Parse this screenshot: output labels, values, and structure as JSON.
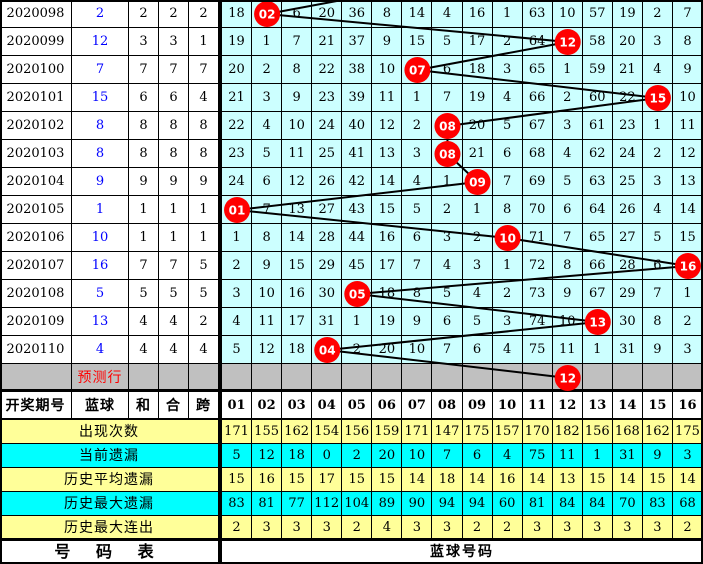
{
  "title": "双色球蓝球走势图",
  "colors": {
    "grid_cyan": "#CCFFFF",
    "stat_yellow": "#FFFF99",
    "stat_cyan": "#00FFFF",
    "prediction_gray": "#C0C0C0",
    "ball_red": "#FF0000",
    "blue_text": "#0000FF",
    "line_black": "#000000"
  },
  "left_table": {
    "headers": {
      "period": "开奖期号",
      "blue": "蓝球",
      "sum": "和",
      "combine": "合",
      "span": "跨"
    },
    "rows": [
      {
        "period": "2020098",
        "blue": "2",
        "cols": [
          "2",
          "2",
          "2"
        ]
      },
      {
        "period": "2020099",
        "blue": "12",
        "cols": [
          "3",
          "3",
          "1"
        ]
      },
      {
        "period": "2020100",
        "blue": "7",
        "cols": [
          "7",
          "7",
          "7"
        ]
      },
      {
        "period": "2020101",
        "blue": "15",
        "cols": [
          "6",
          "6",
          "4"
        ]
      },
      {
        "period": "2020102",
        "blue": "8",
        "cols": [
          "8",
          "8",
          "8"
        ]
      },
      {
        "period": "2020103",
        "blue": "8",
        "cols": [
          "8",
          "8",
          "8"
        ]
      },
      {
        "period": "2020104",
        "blue": "9",
        "cols": [
          "9",
          "9",
          "9"
        ]
      },
      {
        "period": "2020105",
        "blue": "1",
        "cols": [
          "1",
          "1",
          "1"
        ]
      },
      {
        "period": "2020106",
        "blue": "10",
        "cols": [
          "1",
          "1",
          "1"
        ]
      },
      {
        "period": "2020107",
        "blue": "16",
        "cols": [
          "7",
          "7",
          "5"
        ]
      },
      {
        "period": "2020108",
        "blue": "5",
        "cols": [
          "5",
          "5",
          "5"
        ]
      },
      {
        "period": "2020109",
        "blue": "13",
        "cols": [
          "4",
          "4",
          "2"
        ]
      },
      {
        "period": "2020110",
        "blue": "4",
        "cols": [
          "4",
          "4",
          "4"
        ]
      }
    ],
    "prediction_label": "预测行"
  },
  "grid": {
    "column_headers": [
      "01",
      "02",
      "03",
      "04",
      "05",
      "06",
      "07",
      "08",
      "09",
      "10",
      "11",
      "12",
      "13",
      "14",
      "15",
      "16"
    ],
    "rows": [
      [
        "18",
        "",
        "6",
        "20",
        "36",
        "8",
        "14",
        "4",
        "16",
        "1",
        "63",
        "10",
        "57",
        "19",
        "2",
        "7"
      ],
      [
        "19",
        "1",
        "7",
        "21",
        "37",
        "9",
        "15",
        "5",
        "17",
        "2",
        "64",
        "",
        "58",
        "20",
        "3",
        "8"
      ],
      [
        "20",
        "2",
        "8",
        "22",
        "38",
        "10",
        "",
        "6",
        "18",
        "3",
        "65",
        "1",
        "59",
        "21",
        "4",
        "9"
      ],
      [
        "21",
        "3",
        "9",
        "23",
        "39",
        "11",
        "1",
        "7",
        "19",
        "4",
        "66",
        "2",
        "60",
        "22",
        "",
        "10"
      ],
      [
        "22",
        "4",
        "10",
        "24",
        "40",
        "12",
        "2",
        "",
        "20",
        "5",
        "67",
        "3",
        "61",
        "23",
        "1",
        "11"
      ],
      [
        "23",
        "5",
        "11",
        "25",
        "41",
        "13",
        "3",
        "",
        "21",
        "6",
        "68",
        "4",
        "62",
        "24",
        "2",
        "12"
      ],
      [
        "24",
        "6",
        "12",
        "26",
        "42",
        "14",
        "4",
        "1",
        "",
        "7",
        "69",
        "5",
        "63",
        "25",
        "3",
        "13"
      ],
      [
        "",
        "7",
        "13",
        "27",
        "43",
        "15",
        "5",
        "2",
        "1",
        "8",
        "70",
        "6",
        "64",
        "26",
        "4",
        "14"
      ],
      [
        "1",
        "8",
        "14",
        "28",
        "44",
        "16",
        "6",
        "3",
        "2",
        "",
        "71",
        "7",
        "65",
        "27",
        "5",
        "15"
      ],
      [
        "2",
        "9",
        "15",
        "29",
        "45",
        "17",
        "7",
        "4",
        "3",
        "1",
        "72",
        "8",
        "66",
        "28",
        "6",
        ""
      ],
      [
        "3",
        "10",
        "16",
        "30",
        "",
        "18",
        "8",
        "5",
        "4",
        "2",
        "73",
        "9",
        "67",
        "29",
        "7",
        "1"
      ],
      [
        "4",
        "11",
        "17",
        "31",
        "1",
        "19",
        "9",
        "6",
        "5",
        "3",
        "74",
        "10",
        "",
        "30",
        "8",
        "2"
      ],
      [
        "5",
        "12",
        "18",
        "",
        "2",
        "20",
        "10",
        "7",
        "6",
        "4",
        "75",
        "11",
        "1",
        "31",
        "9",
        "3"
      ],
      [
        "",
        "",
        "",
        "",
        "",
        "",
        "",
        "",
        "",
        "",
        "",
        "",
        "",
        "",
        "",
        ""
      ]
    ],
    "circles": [
      {
        "row": 0,
        "col": 1,
        "label": "02"
      },
      {
        "row": 1,
        "col": 11,
        "label": "12"
      },
      {
        "row": 2,
        "col": 6,
        "label": "07"
      },
      {
        "row": 3,
        "col": 14,
        "label": "15"
      },
      {
        "row": 4,
        "col": 7,
        "label": "08"
      },
      {
        "row": 5,
        "col": 7,
        "label": "08"
      },
      {
        "row": 6,
        "col": 8,
        "label": "09"
      },
      {
        "row": 7,
        "col": 0,
        "label": "01"
      },
      {
        "row": 8,
        "col": 9,
        "label": "10"
      },
      {
        "row": 9,
        "col": 15,
        "label": "16"
      },
      {
        "row": 10,
        "col": 4,
        "label": "05"
      },
      {
        "row": 11,
        "col": 12,
        "label": "13"
      },
      {
        "row": 12,
        "col": 3,
        "label": "04"
      },
      {
        "row": 13,
        "col": 11,
        "label": "12"
      }
    ],
    "incoming_line_from_col": 7
  },
  "stats": {
    "rows": [
      {
        "label": "出现次数",
        "bg": "yellow",
        "values": [
          "171",
          "155",
          "162",
          "154",
          "156",
          "159",
          "171",
          "147",
          "175",
          "157",
          "170",
          "182",
          "156",
          "168",
          "162",
          "175"
        ]
      },
      {
        "label": "当前遗漏",
        "bg": "cyan",
        "values": [
          "5",
          "12",
          "18",
          "0",
          "2",
          "20",
          "10",
          "7",
          "6",
          "4",
          "75",
          "11",
          "1",
          "31",
          "9",
          "3"
        ]
      },
      {
        "label": "历史平均遗漏",
        "bg": "yellow",
        "values": [
          "15",
          "16",
          "15",
          "17",
          "15",
          "15",
          "14",
          "18",
          "14",
          "16",
          "14",
          "13",
          "15",
          "14",
          "15",
          "14"
        ]
      },
      {
        "label": "历史最大遗漏",
        "bg": "cyan",
        "values": [
          "83",
          "81",
          "77",
          "112",
          "104",
          "89",
          "90",
          "94",
          "94",
          "60",
          "81",
          "84",
          "84",
          "70",
          "83",
          "68"
        ]
      },
      {
        "label": "历史最大连出",
        "bg": "yellow",
        "values": [
          "2",
          "3",
          "3",
          "3",
          "2",
          "4",
          "3",
          "3",
          "2",
          "2",
          "3",
          "3",
          "3",
          "3",
          "3",
          "2"
        ]
      }
    ]
  },
  "footer": {
    "left": "号  码  表",
    "right": "蓝球号码"
  }
}
